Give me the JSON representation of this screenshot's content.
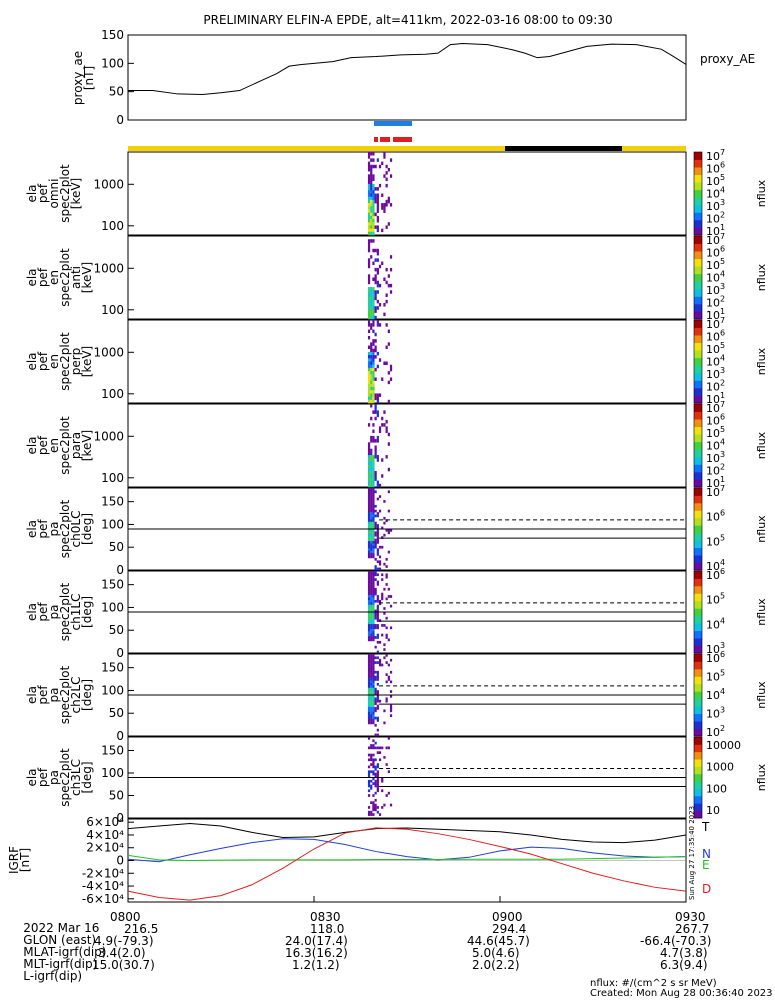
{
  "title": "PRELIMINARY ELFIN-A EPDE, alt=411km, 2022-03-16 08:00 to 09:30",
  "colors": {
    "sci_blue": "#1e7fe0",
    "sci_red": "#e02020",
    "sun_yellow": "#f5d000",
    "shadow_black": "#000000",
    "grf_t": "#000000",
    "grf_n": "#1f3fd0",
    "grf_e": "#22c022",
    "grf_d": "#e02020"
  },
  "colorbar_palette": [
    "#ffffff",
    "#6a0aa0",
    "#2030d0",
    "#1070ff",
    "#10c0e0",
    "#20d0a0",
    "#40d040",
    "#b0e020",
    "#f0e010",
    "#f09010",
    "#e03010",
    "#a00000"
  ],
  "chart_data": [
    {
      "type": "line",
      "panel": "proxy_ae",
      "ylabel": "proxy_ae\n[nT]",
      "series_label": "proxy_AE",
      "ylim": [
        0,
        150
      ],
      "yticks": [
        "0",
        "50",
        "100",
        "150"
      ],
      "x_minutes": [
        0,
        4,
        8,
        12,
        15,
        18,
        22,
        24,
        26,
        28,
        30,
        33,
        36,
        40,
        44,
        48,
        50,
        52,
        54,
        58,
        62,
        64,
        66,
        68,
        70,
        74,
        78,
        82,
        86,
        88,
        90
      ],
      "values": [
        52,
        52,
        46,
        45,
        48,
        52,
        72,
        82,
        95,
        98,
        100,
        103,
        110,
        112,
        115,
        116,
        118,
        133,
        135,
        133,
        124,
        118,
        110,
        112,
        118,
        130,
        134,
        133,
        125,
        112,
        98
      ]
    },
    {
      "type": "heatmap",
      "panel": "omni",
      "ylabel": "ela\npef\nomni\nspec2plot\n[keV]",
      "ylim_log_keV": [
        60,
        6000
      ],
      "yticks": [
        "100",
        "1000"
      ],
      "colorbar_label": "nflux",
      "colorbar_range": [
        "10^1",
        "10^7"
      ]
    },
    {
      "type": "heatmap",
      "panel": "anti",
      "ylabel": "ela\npef\nen\nspec2plot\nanti\n[keV]",
      "ylim_log_keV": [
        60,
        6000
      ],
      "yticks": [
        "100",
        "1000"
      ],
      "colorbar_label": "nflux",
      "colorbar_range": [
        "10^1",
        "10^7"
      ]
    },
    {
      "type": "heatmap",
      "panel": "perp",
      "ylabel": "ela\npef\nen\nspec2plot\nperp\n[keV]",
      "ylim_log_keV": [
        60,
        6000
      ],
      "yticks": [
        "100",
        "1000"
      ],
      "colorbar_label": "nflux",
      "colorbar_range": [
        "10^1",
        "10^7"
      ]
    },
    {
      "type": "heatmap",
      "panel": "para",
      "ylabel": "ela\npef\nen\nspec2plot\npara\n[keV]",
      "ylim_log_keV": [
        60,
        6000
      ],
      "yticks": [
        "100",
        "1000"
      ],
      "colorbar_label": "nflux",
      "colorbar_range": [
        "10^1",
        "10^7"
      ]
    },
    {
      "type": "heatmap",
      "panel": "ch0LC",
      "ylabel": "ela\npef\npa\nspec2plot\nch0LC\n[deg]",
      "ylim": [
        0,
        180
      ],
      "yticks": [
        "0",
        "50",
        "100",
        "150"
      ],
      "colorbar_label": "nflux",
      "colorbar_range": [
        "10^4",
        "10^7"
      ]
    },
    {
      "type": "heatmap",
      "panel": "ch1LC",
      "ylabel": "ela\npef\npa\nspec2plot\nch1LC\n[deg]",
      "ylim": [
        0,
        180
      ],
      "yticks": [
        "0",
        "50",
        "100",
        "150"
      ],
      "colorbar_label": "nflux",
      "colorbar_range": [
        "10^3",
        "10^6"
      ]
    },
    {
      "type": "heatmap",
      "panel": "ch2LC",
      "ylabel": "ela\npef\npa\nspec2plot\nch2LC\n[deg]",
      "ylim": [
        0,
        180
      ],
      "yticks": [
        "0",
        "50",
        "100",
        "150"
      ],
      "colorbar_label": "nflux",
      "colorbar_range": [
        "10^2",
        "10^6"
      ]
    },
    {
      "type": "heatmap",
      "panel": "ch3LC",
      "ylabel": "ela\npef\npa\nspec2plot\nch3LC\n[deg]",
      "ylim": [
        0,
        180
      ],
      "yticks": [
        "0",
        "50",
        "100",
        "150"
      ],
      "colorbar_label": "nflux",
      "colorbar_ticks": [
        "10",
        "100",
        "1000",
        "10000"
      ]
    },
    {
      "type": "line",
      "panel": "IGRF",
      "ylabel": "IGRF\n[nT]",
      "ylim": [
        -65000,
        65000
      ],
      "yticks": [
        "6×10⁴",
        "4×10⁴",
        "2×10⁴",
        "0",
        "-2×10⁴",
        "-4×10⁴",
        "-6×10⁴"
      ],
      "x_minutes": [
        0,
        5,
        10,
        15,
        20,
        25,
        30,
        35,
        40,
        45,
        50,
        55,
        60,
        65,
        70,
        75,
        80,
        85,
        90
      ],
      "series": [
        {
          "name": "T",
          "values": [
            50000,
            54000,
            58000,
            54000,
            44000,
            36000,
            37000,
            44000,
            50000,
            51000,
            49000,
            47000,
            45000,
            40000,
            33000,
            29000,
            28000,
            32000,
            40000
          ]
        },
        {
          "name": "N",
          "values": [
            2000,
            -2000,
            9000,
            19000,
            28000,
            34000,
            33000,
            25000,
            14000,
            6000,
            1000,
            5000,
            15000,
            21000,
            19000,
            12000,
            7000,
            5000,
            6000
          ]
        },
        {
          "name": "E",
          "values": [
            8000,
            1000,
            0,
            500,
            1000,
            1000,
            1000,
            1000,
            1500,
            1500,
            1500,
            2000,
            2000,
            2000,
            2000,
            3000,
            4000,
            5000,
            6000
          ]
        },
        {
          "name": "D",
          "values": [
            -48000,
            -58000,
            -62000,
            -55000,
            -38000,
            -12000,
            18000,
            43000,
            51000,
            49000,
            42000,
            33000,
            22000,
            10000,
            -5000,
            -20000,
            -32000,
            -42000,
            -48000
          ]
        }
      ]
    }
  ],
  "sci_zone_label_blue": "",
  "side_text": "Sun Aug 27 17:35:40 2023",
  "time_axis": {
    "ticks": [
      "0800",
      "0830",
      "0900",
      "0930"
    ],
    "row_labels": [
      "2022 Mar 16",
      "GLON (east)",
      "MLAT-igrf(dip)",
      "MLT-igrf(dip)",
      "L-igrf(dip)"
    ],
    "columns": [
      {
        "time": "0800",
        "glon": "216.5",
        "mlat": "4.9(-79.3)",
        "mlt": "3.4(2.0)",
        "l": "15.0(30.7)"
      },
      {
        "time": "0830",
        "glon": "118.0",
        "mlat": "24.0(17.4)",
        "mlt": "16.3(16.2)",
        "l": "1.2(1.2)"
      },
      {
        "time": "0900",
        "glon": "294.4",
        "mlat": "44.6(45.7)",
        "mlt": "5.0(4.6)",
        "l": "2.0(2.2)"
      },
      {
        "time": "0930",
        "glon": "267.7",
        "mlat": "-66.4(-70.3)",
        "mlt": "4.7(3.8)",
        "l": "6.3(9.4)"
      }
    ]
  },
  "footer": {
    "units": "nflux: #/(cm^2 s sr MeV)",
    "created": "Created: Mon Aug 28 00:36:40 2023"
  }
}
